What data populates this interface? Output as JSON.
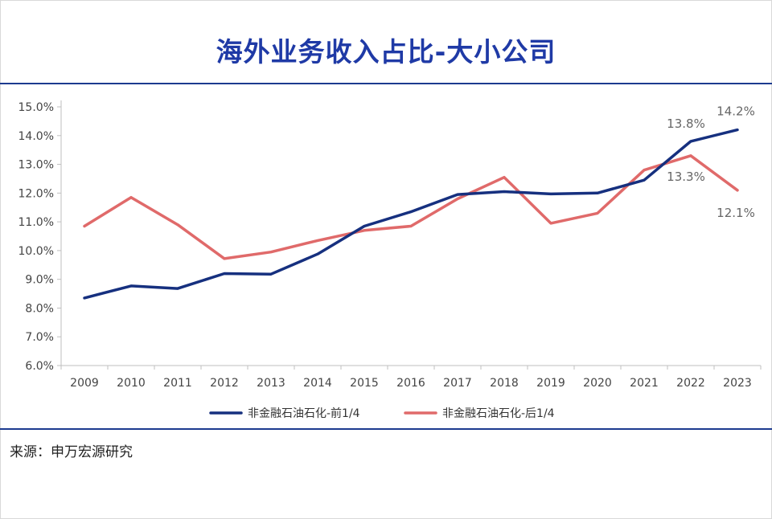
{
  "title": "海外业务收入占比-大小公司",
  "source": "来源：申万宏源研究",
  "colors": {
    "title": "#1f3aa6",
    "rule": "#1d3b8f",
    "series_1": "#16307f",
    "series_2": "#e06a6a",
    "axis_text": "#444444",
    "label_text": "#666666"
  },
  "chart_data": {
    "type": "line",
    "x": [
      "2009",
      "2010",
      "2011",
      "2012",
      "2013",
      "2014",
      "2015",
      "2016",
      "2017",
      "2018",
      "2019",
      "2020",
      "2021",
      "2022",
      "2023"
    ],
    "series": [
      {
        "name": "非金融石油石化-前1/4",
        "values": [
          8.35,
          8.77,
          8.68,
          9.2,
          9.18,
          9.88,
          10.85,
          11.35,
          11.95,
          12.05,
          11.97,
          12.0,
          12.45,
          13.8,
          14.2
        ]
      },
      {
        "name": "非金融石油石化-后1/4",
        "values": [
          10.85,
          11.85,
          10.9,
          9.72,
          9.95,
          10.35,
          10.7,
          10.85,
          11.8,
          12.55,
          10.95,
          11.3,
          12.8,
          13.3,
          12.1
        ]
      }
    ],
    "ylim": [
      6.0,
      15.0
    ],
    "yticks": [
      "6.0%",
      "7.0%",
      "8.0%",
      "9.0%",
      "10.0%",
      "11.0%",
      "12.0%",
      "13.0%",
      "14.0%",
      "15.0%"
    ],
    "annotations": [
      {
        "series": 0,
        "index": 13,
        "text": "13.8%"
      },
      {
        "series": 0,
        "index": 14,
        "text": "14.2%"
      },
      {
        "series": 1,
        "index": 13,
        "text": "13.3%"
      },
      {
        "series": 1,
        "index": 14,
        "text": "12.1%"
      }
    ],
    "xlabel": "",
    "ylabel": "",
    "grid": false,
    "legend_position": "bottom"
  }
}
